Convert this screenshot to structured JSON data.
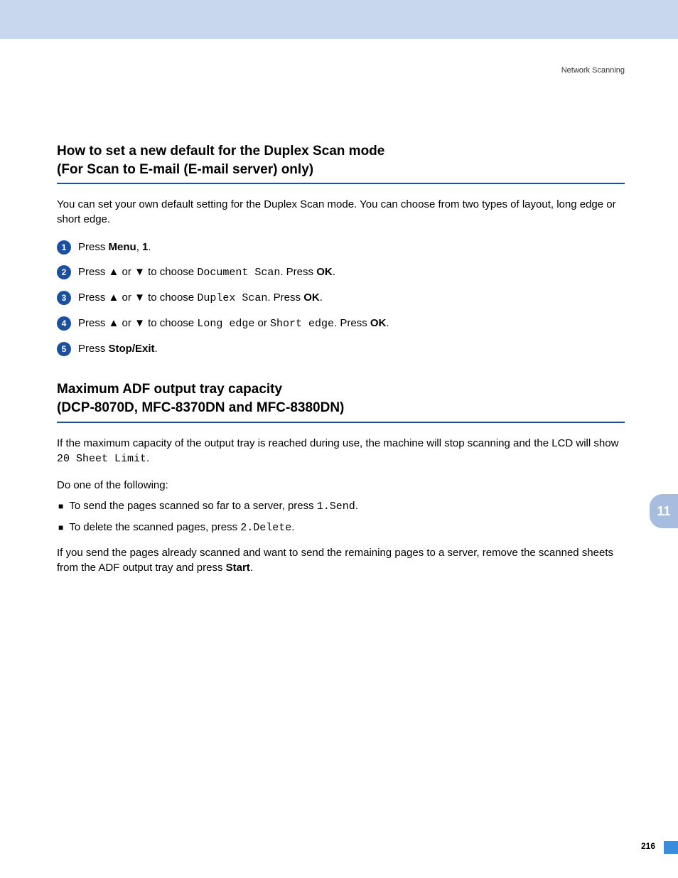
{
  "header": {
    "category": "Network Scanning"
  },
  "section1": {
    "title_line1": "How to set a new default for the Duplex Scan mode",
    "title_line2": "(For Scan to E-mail (E-mail server) only)",
    "intro": "You can set your own default setting for the Duplex Scan mode. You can choose from two types of layout, long edge or short edge.",
    "steps": [
      {
        "n": "1",
        "pre": "Press ",
        "bold1": "Menu",
        "mid": ", ",
        "bold2": "1",
        "post": "."
      },
      {
        "n": "2",
        "pre": "Press ",
        "arrow1": "▲",
        "mid1": " or ",
        "arrow2": "▼",
        "mid2": " to choose ",
        "mono1": "Document Scan",
        "mid3": ". Press ",
        "bold1": "OK",
        "post": "."
      },
      {
        "n": "3",
        "pre": "Press ",
        "arrow1": "▲",
        "mid1": " or ",
        "arrow2": "▼",
        "mid2": " to choose ",
        "mono1": "Duplex Scan",
        "mid3": ". Press ",
        "bold1": "OK",
        "post": "."
      },
      {
        "n": "4",
        "pre": "Press ",
        "arrow1": "▲",
        "mid1": " or ",
        "arrow2": "▼",
        "mid2": " to choose ",
        "mono1": "Long edge",
        "mid3": " or ",
        "mono2": "Short edge",
        "mid4": ". Press ",
        "bold1": "OK",
        "post": "."
      },
      {
        "n": "5",
        "pre": "Press ",
        "bold1": "Stop/Exit",
        "post": "."
      }
    ]
  },
  "section2": {
    "title_line1": "Maximum ADF output tray capacity",
    "title_line2": "(DCP-8070D, MFC-8370DN and MFC-8380DN)",
    "intro_pre": "If the maximum capacity of the output tray is reached during use, the machine will stop scanning and the LCD will show ",
    "intro_mono": "20 Sheet Limit",
    "intro_post": ".",
    "do_one": "Do one of the following:",
    "bullets": [
      {
        "pre": "To send the pages scanned so far to a server, press ",
        "mono": "1.Send",
        "post": "."
      },
      {
        "pre": "To delete the scanned pages, press ",
        "mono": "2.Delete",
        "post": "."
      }
    ],
    "closing_pre": "If you send the pages already scanned and want to send the remaining pages to a server, remove the scanned sheets from the ADF output tray and press ",
    "closing_bold": "Start",
    "closing_post": "."
  },
  "chrome": {
    "side_tab": "11",
    "page_number": "216",
    "colors": {
      "top_bar": "#c8d7ee",
      "rule": "#1b4fa0",
      "step_circle": "#1b4fa0",
      "side_tab_bg": "#a7bde0",
      "corner_tab": "#3a8dde"
    }
  }
}
